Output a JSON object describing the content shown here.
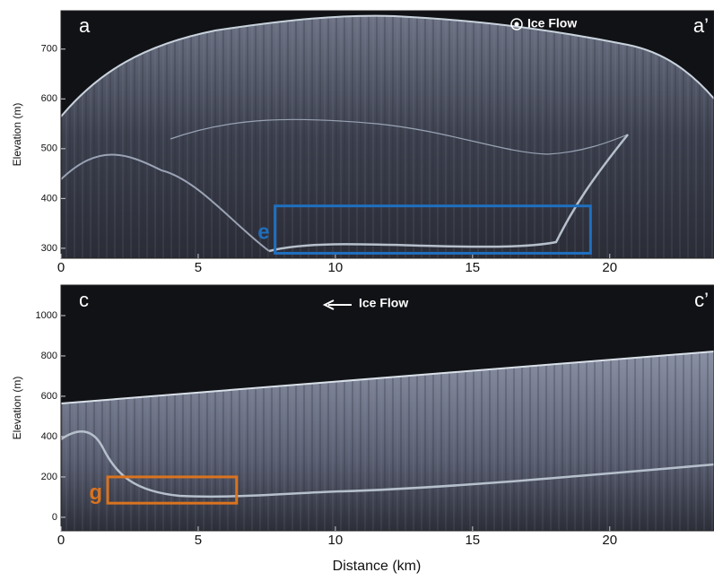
{
  "chart_data": [
    {
      "type": "radargram",
      "panel_label": "a",
      "end_label": "a’",
      "annotation": "Ice Flow",
      "ylabel": "Elevation (m)",
      "xlim": [
        0,
        23.8
      ],
      "ylim": [
        280,
        777
      ],
      "xticks": [
        0,
        5,
        10,
        15,
        20
      ],
      "yticks": [
        300,
        400,
        500,
        600,
        700
      ],
      "highlight": {
        "label": "e",
        "color": "#1f6fbf",
        "x": [
          7.8,
          19.3
        ],
        "y": [
          290,
          385
        ]
      }
    },
    {
      "type": "radargram",
      "panel_label": "c",
      "end_label": "c’",
      "annotation": "Ice Flow",
      "ylabel": "Elevation (m)",
      "xlabel": "Distance (km)",
      "xlim": [
        0,
        23.8
      ],
      "ylim": [
        -67,
        1151
      ],
      "xticks": [
        0,
        5,
        10,
        15,
        20
      ],
      "yticks": [
        0,
        200,
        400,
        600,
        800,
        1000
      ],
      "highlight": {
        "label": "g",
        "color": "#d9731f",
        "x": [
          1.7,
          6.4
        ],
        "y": [
          70,
          200
        ]
      }
    }
  ]
}
